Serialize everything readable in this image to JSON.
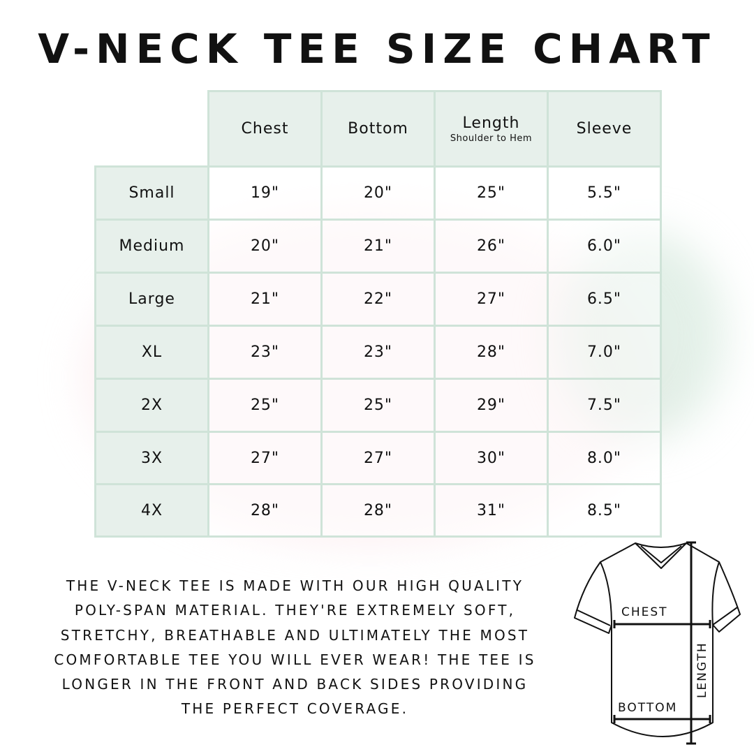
{
  "title": "V-NECK TEE SIZE CHART",
  "table": {
    "headers": [
      {
        "label": "Chest",
        "sub": ""
      },
      {
        "label": "Bottom",
        "sub": ""
      },
      {
        "label": "Length",
        "sub": "Shoulder to Hem"
      },
      {
        "label": "Sleeve",
        "sub": ""
      }
    ],
    "rows": [
      {
        "size": "Small",
        "values": [
          "19\"",
          "20\"",
          "25\"",
          "5.5\""
        ]
      },
      {
        "size": "Medium",
        "values": [
          "20\"",
          "21\"",
          "26\"",
          "6.0\""
        ]
      },
      {
        "size": "Large",
        "values": [
          "21\"",
          "22\"",
          "27\"",
          "6.5\""
        ]
      },
      {
        "size": "XL",
        "values": [
          "23\"",
          "23\"",
          "28\"",
          "7.0\""
        ]
      },
      {
        "size": "2X",
        "values": [
          "25\"",
          "25\"",
          "29\"",
          "7.5\""
        ]
      },
      {
        "size": "3X",
        "values": [
          "27\"",
          "27\"",
          "30\"",
          "8.0\""
        ]
      },
      {
        "size": "4X",
        "values": [
          "28\"",
          "28\"",
          "31\"",
          "8.5\""
        ]
      }
    ]
  },
  "description_lines": [
    "The V-Neck Tee is made with our high quality",
    "poly-span material. They're extremely soft,",
    "stretchy, breathable and ultimately the most",
    "comfortable tee you will ever wear! The tee is",
    "longer in the front and back sides providing",
    "the perfect coverage."
  ],
  "diagram": {
    "chest": "CHEST",
    "bottom": "BOTTOM",
    "length": "LENGTH"
  },
  "colors": {
    "header_bg": "#e7f0eb",
    "border": "#cfe3d8"
  }
}
